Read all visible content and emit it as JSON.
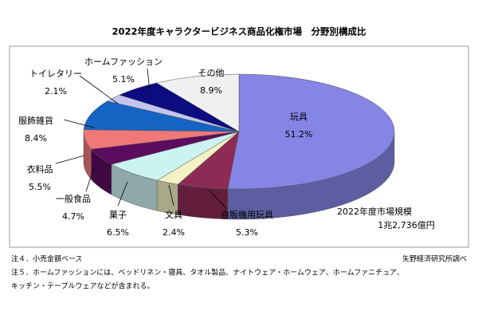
{
  "chart_data": {
    "type": "pie3d",
    "title": "2022年度キャラクタービジネス商品化権市場　分野別構成比",
    "categories": [
      "玩具",
      "自販機用玩具",
      "文具",
      "菓子",
      "一般食品",
      "衣料品",
      "服飾雑貨",
      "トイレタリー",
      "ホームファッション",
      "その他"
    ],
    "values": [
      51.2,
      5.3,
      2.4,
      6.5,
      4.7,
      5.5,
      8.4,
      2.1,
      5.1,
      8.9
    ],
    "value_labels": [
      "51.2%",
      "5.3%",
      "2.4%",
      "6.5%",
      "4.7%",
      "5.5%",
      "8.4%",
      "2.1%",
      "5.1%",
      "8.9%"
    ],
    "colors": [
      "#8585e6",
      "#8e2b55",
      "#f2f2c4",
      "#ccf2f2",
      "#5c0c5e",
      "#f07878",
      "#1464c4",
      "#c4c4f0",
      "#0c0c80",
      "#f0f0f0"
    ],
    "market_size_label": "2022年度市場規模",
    "market_size_value": "1兆2,736億円",
    "notes": [
      "注４．小売金額ベース",
      "注５．ホームファッションには、ベッドリネン・寝具、タオル製品、ナイトウェア・ホームウェア、ホームファニチュア、",
      "キッチン・テーブルウェアなどが含まれる。"
    ],
    "source": "矢野経済研究所調べ"
  }
}
